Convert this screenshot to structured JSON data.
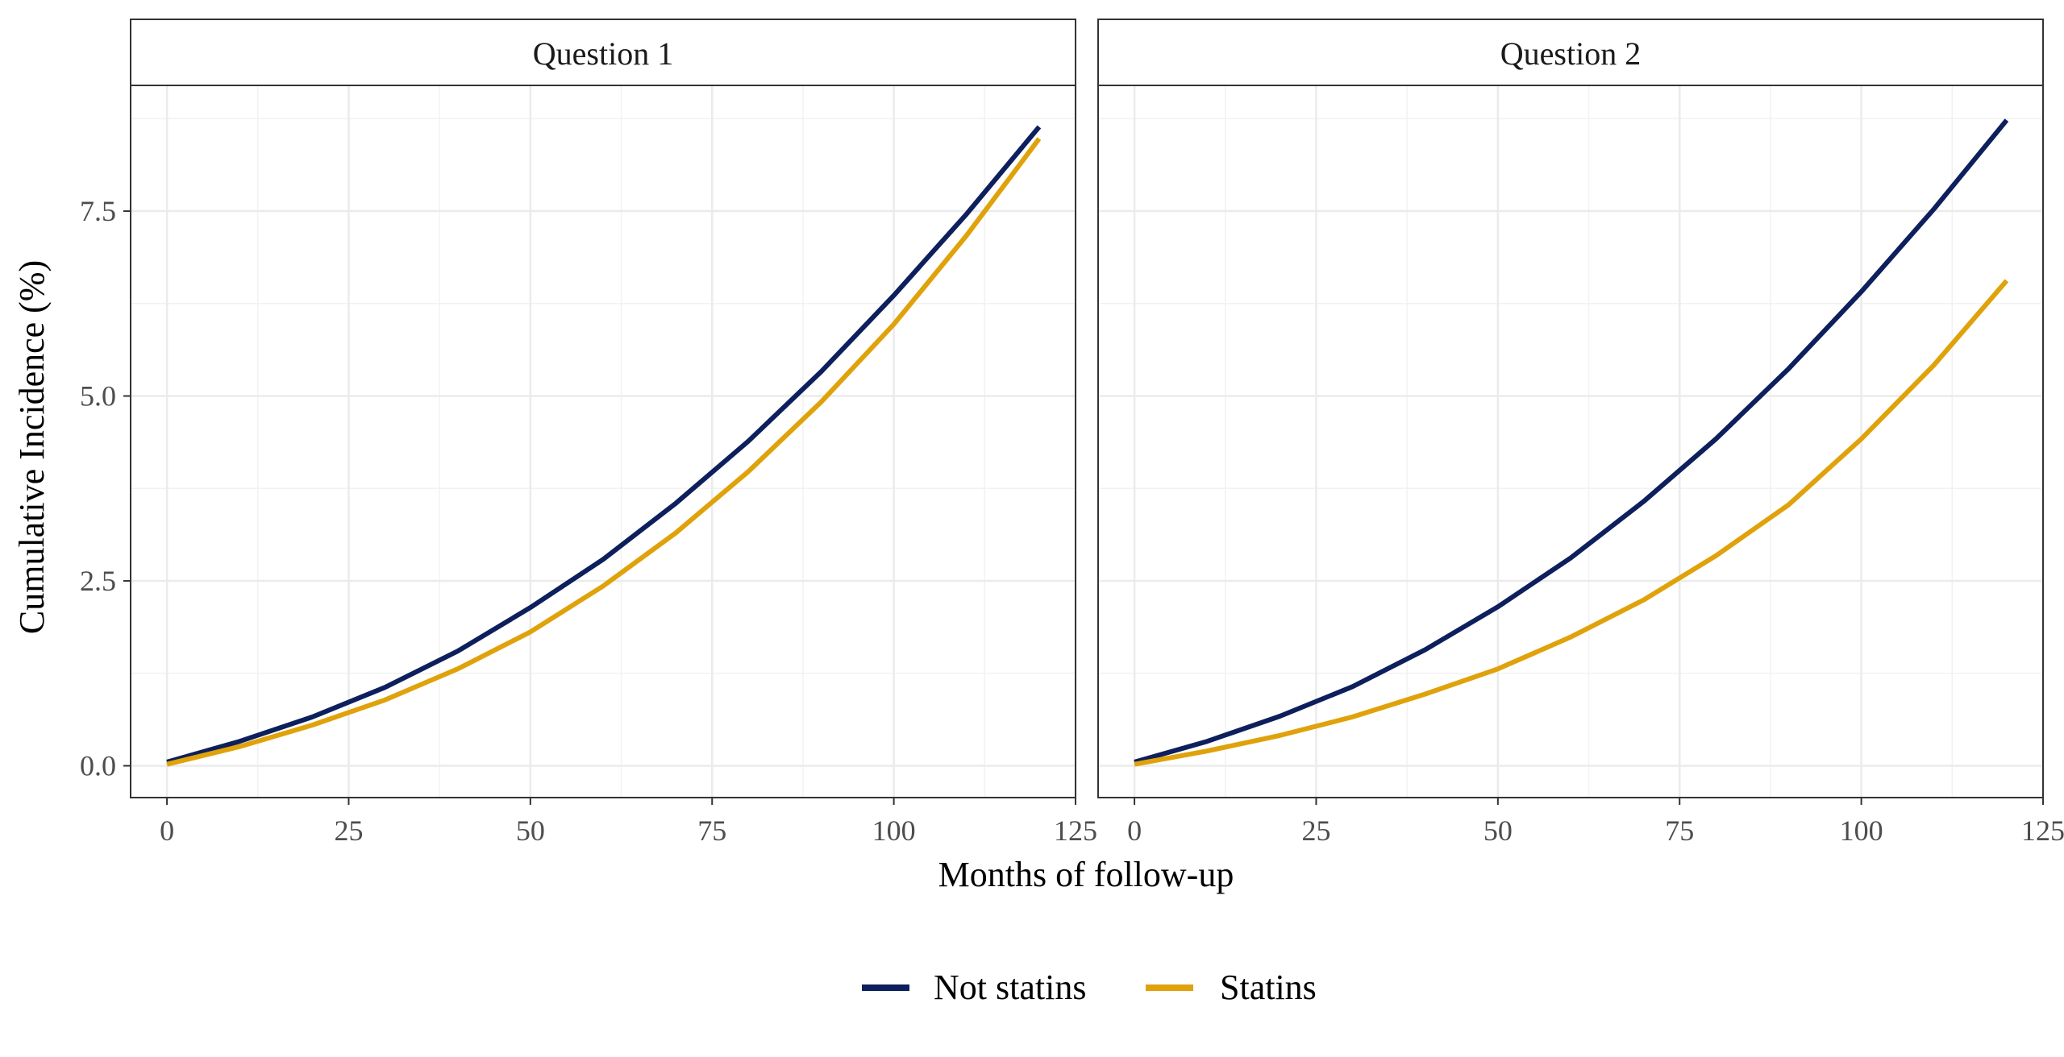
{
  "chart_data": {
    "type": "line",
    "xlabel": "Months of follow-up",
    "ylabel": "Cumulative Incidence (%)",
    "xlim": [
      -5,
      125
    ],
    "ylim": [
      -0.43,
      9.2
    ],
    "x_ticks": [
      0,
      25,
      50,
      75,
      100,
      125
    ],
    "y_ticks": [
      0,
      2.5,
      5,
      7.5
    ],
    "x_tick_labels": [
      "0",
      "25",
      "50",
      "75",
      "100",
      "125"
    ],
    "y_tick_labels": [
      "0.0",
      "2.5",
      "5.0",
      "7.5"
    ],
    "grid": true,
    "legend_position": "bottom",
    "legend": [
      {
        "label": "Not statins",
        "color": "#0d1f5c"
      },
      {
        "label": "Statins",
        "color": "#e0a20b"
      }
    ],
    "panels": [
      {
        "title": "Question 1",
        "x": [
          0,
          10,
          20,
          30,
          40,
          50,
          60,
          70,
          80,
          90,
          100,
          110,
          120
        ],
        "series": [
          {
            "name": "Not statins",
            "color": "#0d1f5c",
            "values": [
              0.05,
              0.33,
              0.66,
              1.06,
              1.55,
              2.14,
              2.79,
              3.55,
              4.39,
              5.33,
              6.36,
              7.46,
              8.64
            ]
          },
          {
            "name": "Statins",
            "color": "#e0a20b",
            "values": [
              0.02,
              0.26,
              0.55,
              0.89,
              1.31,
              1.81,
              2.43,
              3.15,
              3.98,
              4.92,
              5.97,
              7.17,
              8.48
            ]
          }
        ]
      },
      {
        "title": "Question 2",
        "x": [
          0,
          10,
          20,
          30,
          40,
          50,
          60,
          70,
          80,
          90,
          100,
          110,
          120
        ],
        "series": [
          {
            "name": "Not statins",
            "color": "#0d1f5c",
            "values": [
              0.05,
              0.33,
              0.67,
              1.07,
              1.57,
              2.15,
              2.81,
              3.57,
              4.42,
              5.37,
              6.41,
              7.53,
              8.73
            ]
          },
          {
            "name": "Statins",
            "color": "#e0a20b",
            "values": [
              0.02,
              0.2,
              0.41,
              0.66,
              0.97,
              1.31,
              1.74,
              2.24,
              2.84,
              3.53,
              4.42,
              5.42,
              6.56
            ]
          }
        ]
      }
    ]
  }
}
